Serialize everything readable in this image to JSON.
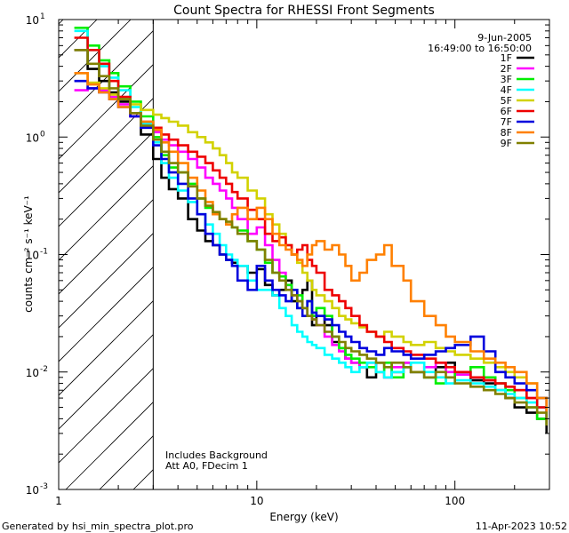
{
  "chart_data": {
    "type": "line",
    "title": "Count Spectra for RHESSI Front Segments",
    "xlabel": "Energy (keV)",
    "ylabel": "counts cm⁻² s⁻¹ keV⁻¹",
    "xscale": "log",
    "yscale": "log",
    "xlim": [
      1,
      300
    ],
    "ylim": [
      0.001,
      10
    ],
    "x_ticks": [
      {
        "v": 1,
        "label": "1"
      },
      {
        "v": 10,
        "label": "10"
      },
      {
        "v": 100,
        "label": "100"
      }
    ],
    "y_ticks": [
      {
        "v": 10,
        "base": "10",
        "exp": "1"
      },
      {
        "v": 1,
        "base": "10",
        "exp": "0"
      },
      {
        "v": 0.1,
        "base": "10",
        "exp": "-1"
      },
      {
        "v": 0.01,
        "base": "10",
        "exp": "-2"
      },
      {
        "v": 0.001,
        "base": "10",
        "exp": "-3"
      }
    ],
    "date": "9-Jun-2005",
    "time_range": "16:49:00 to 16:50:00",
    "hatch_limit_keV": 3,
    "annotations": [
      "Includes Background",
      "Att A0, FDecim 1"
    ],
    "footer_left": "Generated by hsi_min_spectra_plot.pro",
    "footer_right": "11-Apr-2023 10:52",
    "series": [
      {
        "name": "1F",
        "color": "#000000",
        "x": [
          1.2,
          1.4,
          1.6,
          1.8,
          2.0,
          2.3,
          2.6,
          3.0,
          3.3,
          3.6,
          4.0,
          4.5,
          5.0,
          5.5,
          6.0,
          6.5,
          7.0,
          7.5,
          8.0,
          9.0,
          10.0,
          11.0,
          12.0,
          13.0,
          14.0,
          15.0,
          16.0,
          17.0,
          18.0,
          19.0,
          20.0,
          22.0,
          24.0,
          26.0,
          28.0,
          30.0,
          33.0,
          36.0,
          40.0,
          44.0,
          48.0,
          55.0,
          60.0,
          70.0,
          80.0,
          90.0,
          100.0,
          120.0,
          140.0,
          160.0,
          180.0,
          200.0,
          230.0,
          260.0,
          290.0
        ],
        "y": [
          5.5,
          3.8,
          3.0,
          2.4,
          2.0,
          1.5,
          1.05,
          0.65,
          0.45,
          0.36,
          0.3,
          0.2,
          0.16,
          0.13,
          0.12,
          0.1,
          0.09,
          0.085,
          0.08,
          0.07,
          0.075,
          0.055,
          0.045,
          0.05,
          0.06,
          0.04,
          0.035,
          0.05,
          0.06,
          0.025,
          0.03,
          0.025,
          0.018,
          0.016,
          0.013,
          0.012,
          0.011,
          0.009,
          0.012,
          0.009,
          0.01,
          0.012,
          0.01,
          0.009,
          0.011,
          0.012,
          0.01,
          0.0085,
          0.008,
          0.007,
          0.006,
          0.005,
          0.0045,
          0.004,
          0.003
        ]
      },
      {
        "name": "2F",
        "color": "#ff00ff",
        "x": [
          1.2,
          1.4,
          1.6,
          1.8,
          2.0,
          2.3,
          2.6,
          3.0,
          3.3,
          3.6,
          4.0,
          4.5,
          5.0,
          5.5,
          6.0,
          6.5,
          7.0,
          7.5,
          8.0,
          9.0,
          10.0,
          11.0,
          12.0,
          13.0,
          14.0,
          15.0,
          16.0,
          17.0,
          18.0,
          19.0,
          20.0,
          22.0,
          24.0,
          26.0,
          28.0,
          30.0,
          33.0,
          36.0,
          40.0,
          44.0,
          48.0,
          55.0,
          60.0,
          70.0,
          80.0,
          90.0,
          100.0,
          120.0,
          140.0,
          160.0,
          180.0,
          200.0,
          230.0,
          260.0,
          290.0
        ],
        "y": [
          2.5,
          2.6,
          2.5,
          2.2,
          1.9,
          1.5,
          1.3,
          1.1,
          0.95,
          0.85,
          0.75,
          0.65,
          0.55,
          0.45,
          0.4,
          0.35,
          0.3,
          0.25,
          0.2,
          0.15,
          0.17,
          0.12,
          0.09,
          0.07,
          0.055,
          0.045,
          0.04,
          0.035,
          0.03,
          0.028,
          0.025,
          0.02,
          0.017,
          0.015,
          0.013,
          0.012,
          0.011,
          0.012,
          0.01,
          0.009,
          0.011,
          0.012,
          0.01,
          0.011,
          0.012,
          0.01,
          0.0095,
          0.009,
          0.0085,
          0.008,
          0.0075,
          0.007,
          0.006,
          0.005,
          0.004
        ]
      },
      {
        "name": "3F",
        "color": "#00ee00",
        "x": [
          1.2,
          1.4,
          1.6,
          1.8,
          2.0,
          2.3,
          2.6,
          3.0,
          3.3,
          3.6,
          4.0,
          4.5,
          5.0,
          5.5,
          6.0,
          6.5,
          7.0,
          7.5,
          8.0,
          9.0,
          10.0,
          11.0,
          12.0,
          13.0,
          14.0,
          15.0,
          16.0,
          17.0,
          18.0,
          19.0,
          20.0,
          22.0,
          24.0,
          26.0,
          28.0,
          30.0,
          33.0,
          36.0,
          40.0,
          44.0,
          48.0,
          55.0,
          60.0,
          70.0,
          80.0,
          90.0,
          100.0,
          120.0,
          140.0,
          160.0,
          180.0,
          200.0,
          230.0,
          260.0,
          290.0
        ],
        "y": [
          8.5,
          6.0,
          4.5,
          3.5,
          2.7,
          2.0,
          1.5,
          1.0,
          0.7,
          0.55,
          0.5,
          0.4,
          0.3,
          0.25,
          0.22,
          0.2,
          0.18,
          0.17,
          0.16,
          0.13,
          0.11,
          0.085,
          0.07,
          0.065,
          0.055,
          0.05,
          0.045,
          0.035,
          0.04,
          0.03,
          0.035,
          0.03,
          0.02,
          0.016,
          0.014,
          0.013,
          0.012,
          0.011,
          0.01,
          0.012,
          0.009,
          0.011,
          0.01,
          0.009,
          0.008,
          0.009,
          0.01,
          0.011,
          0.009,
          0.008,
          0.007,
          0.006,
          0.005,
          0.004,
          0.0035
        ]
      },
      {
        "name": "4F",
        "color": "#00ffff",
        "x": [
          1.2,
          1.4,
          1.6,
          1.8,
          2.0,
          2.3,
          2.6,
          3.0,
          3.3,
          3.6,
          4.0,
          4.5,
          5.0,
          5.5,
          6.0,
          6.5,
          7.0,
          7.5,
          8.0,
          9.0,
          10.0,
          11.0,
          12.0,
          13.0,
          14.0,
          15.0,
          16.0,
          17.0,
          18.0,
          19.0,
          20.0,
          22.0,
          24.0,
          26.0,
          28.0,
          30.0,
          33.0,
          36.0,
          40.0,
          44.0,
          48.0,
          55.0,
          60.0,
          70.0,
          80.0,
          90.0,
          100.0,
          120.0,
          140.0,
          160.0,
          180.0,
          200.0,
          230.0,
          260.0,
          290.0
        ],
        "y": [
          8.0,
          5.5,
          4.0,
          3.2,
          2.5,
          1.8,
          1.3,
          0.9,
          0.6,
          0.45,
          0.35,
          0.28,
          0.22,
          0.18,
          0.15,
          0.12,
          0.1,
          0.09,
          0.08,
          0.06,
          0.05,
          0.05,
          0.045,
          0.035,
          0.03,
          0.025,
          0.022,
          0.02,
          0.018,
          0.017,
          0.016,
          0.014,
          0.013,
          0.012,
          0.011,
          0.01,
          0.011,
          0.012,
          0.01,
          0.009,
          0.01,
          0.011,
          0.012,
          0.01,
          0.009,
          0.008,
          0.0085,
          0.008,
          0.0075,
          0.007,
          0.0065,
          0.006,
          0.0055,
          0.005,
          0.004
        ]
      },
      {
        "name": "5F",
        "color": "#d2d200",
        "x": [
          1.2,
          1.4,
          1.6,
          1.8,
          2.0,
          2.3,
          2.6,
          3.0,
          3.3,
          3.6,
          4.0,
          4.5,
          5.0,
          5.5,
          6.0,
          6.5,
          7.0,
          7.5,
          8.0,
          9.0,
          10.0,
          11.0,
          12.0,
          13.0,
          14.0,
          15.0,
          16.0,
          17.0,
          18.0,
          19.0,
          20.0,
          22.0,
          24.0,
          26.0,
          28.0,
          30.0,
          33.0,
          36.0,
          40.0,
          44.0,
          48.0,
          55.0,
          60.0,
          70.0,
          80.0,
          90.0,
          100.0,
          120.0,
          140.0,
          160.0,
          180.0,
          200.0,
          230.0,
          260.0,
          290.0
        ],
        "y": [
          3.5,
          2.9,
          2.6,
          2.3,
          2.1,
          1.9,
          1.7,
          1.55,
          1.45,
          1.35,
          1.25,
          1.1,
          1.0,
          0.9,
          0.8,
          0.7,
          0.6,
          0.5,
          0.45,
          0.35,
          0.3,
          0.22,
          0.18,
          0.15,
          0.12,
          0.1,
          0.085,
          0.07,
          0.06,
          0.05,
          0.045,
          0.04,
          0.035,
          0.03,
          0.028,
          0.026,
          0.024,
          0.022,
          0.02,
          0.022,
          0.02,
          0.018,
          0.017,
          0.018,
          0.016,
          0.015,
          0.014,
          0.013,
          0.012,
          0.011,
          0.01,
          0.009,
          0.008,
          0.006,
          0.005
        ]
      },
      {
        "name": "6F",
        "color": "#ee0000",
        "x": [
          1.2,
          1.4,
          1.6,
          1.8,
          2.0,
          2.3,
          2.6,
          3.0,
          3.3,
          3.6,
          4.0,
          4.5,
          5.0,
          5.5,
          6.0,
          6.5,
          7.0,
          7.5,
          8.0,
          9.0,
          10.0,
          11.0,
          12.0,
          13.0,
          14.0,
          15.0,
          16.0,
          17.0,
          18.0,
          19.0,
          20.0,
          22.0,
          24.0,
          26.0,
          28.0,
          30.0,
          33.0,
          36.0,
          40.0,
          44.0,
          48.0,
          55.0,
          60.0,
          70.0,
          80.0,
          90.0,
          100.0,
          120.0,
          140.0,
          160.0,
          180.0,
          200.0,
          230.0,
          260.0,
          290.0
        ],
        "y": [
          7.0,
          5.5,
          4.2,
          3.0,
          2.2,
          1.6,
          1.35,
          1.2,
          1.05,
          0.95,
          0.85,
          0.75,
          0.68,
          0.6,
          0.52,
          0.45,
          0.4,
          0.34,
          0.3,
          0.24,
          0.2,
          0.15,
          0.13,
          0.14,
          0.12,
          0.1,
          0.11,
          0.12,
          0.09,
          0.08,
          0.07,
          0.05,
          0.045,
          0.04,
          0.035,
          0.03,
          0.025,
          0.022,
          0.02,
          0.018,
          0.016,
          0.015,
          0.014,
          0.013,
          0.012,
          0.011,
          0.01,
          0.009,
          0.0085,
          0.008,
          0.0075,
          0.007,
          0.006,
          0.005,
          0.004
        ]
      },
      {
        "name": "7F",
        "color": "#0000dd",
        "x": [
          1.2,
          1.4,
          1.6,
          1.8,
          2.0,
          2.3,
          2.6,
          3.0,
          3.3,
          3.6,
          4.0,
          4.5,
          5.0,
          5.5,
          6.0,
          6.5,
          7.0,
          7.5,
          8.0,
          9.0,
          10.0,
          11.0,
          12.0,
          13.0,
          14.0,
          15.0,
          16.0,
          17.0,
          18.0,
          19.0,
          20.0,
          22.0,
          24.0,
          26.0,
          28.0,
          30.0,
          33.0,
          36.0,
          40.0,
          44.0,
          48.0,
          55.0,
          60.0,
          70.0,
          80.0,
          90.0,
          100.0,
          120.0,
          140.0,
          160.0,
          180.0,
          200.0,
          230.0,
          260.0,
          290.0
        ],
        "y": [
          3.0,
          2.6,
          2.4,
          2.1,
          1.8,
          1.5,
          1.2,
          0.85,
          0.65,
          0.5,
          0.4,
          0.3,
          0.22,
          0.15,
          0.12,
          0.1,
          0.09,
          0.08,
          0.06,
          0.05,
          0.08,
          0.06,
          0.05,
          0.045,
          0.04,
          0.05,
          0.035,
          0.03,
          0.04,
          0.032,
          0.03,
          0.028,
          0.025,
          0.022,
          0.02,
          0.018,
          0.016,
          0.015,
          0.014,
          0.016,
          0.015,
          0.014,
          0.013,
          0.014,
          0.015,
          0.016,
          0.017,
          0.02,
          0.015,
          0.01,
          0.009,
          0.008,
          0.007,
          0.006,
          0.004
        ]
      },
      {
        "name": "8F",
        "color": "#ff8000",
        "x": [
          1.2,
          1.4,
          1.6,
          1.8,
          2.0,
          2.3,
          2.6,
          3.0,
          3.3,
          3.6,
          4.0,
          4.5,
          5.0,
          5.5,
          6.0,
          6.5,
          7.0,
          7.5,
          8.0,
          9.0,
          10.0,
          11.0,
          12.0,
          13.0,
          14.0,
          15.0,
          16.0,
          17.0,
          18.0,
          19.0,
          20.0,
          22.0,
          24.0,
          26.0,
          28.0,
          30.0,
          33.0,
          36.0,
          40.0,
          44.0,
          48.0,
          55.0,
          60.0,
          70.0,
          80.0,
          90.0,
          100.0,
          120.0,
          140.0,
          160.0,
          180.0,
          200.0,
          230.0,
          260.0,
          290.0
        ],
        "y": [
          3.5,
          2.8,
          2.4,
          2.1,
          1.8,
          1.6,
          1.35,
          1.15,
          0.9,
          0.75,
          0.6,
          0.45,
          0.35,
          0.28,
          0.22,
          0.2,
          0.18,
          0.22,
          0.25,
          0.2,
          0.25,
          0.2,
          0.15,
          0.12,
          0.11,
          0.1,
          0.09,
          0.08,
          0.1,
          0.12,
          0.13,
          0.11,
          0.12,
          0.1,
          0.08,
          0.06,
          0.07,
          0.09,
          0.1,
          0.12,
          0.08,
          0.06,
          0.04,
          0.03,
          0.025,
          0.02,
          0.018,
          0.015,
          0.013,
          0.012,
          0.011,
          0.01,
          0.008,
          0.006,
          0.0045
        ]
      },
      {
        "name": "9F",
        "color": "#808000",
        "x": [
          1.2,
          1.4,
          1.6,
          1.8,
          2.0,
          2.3,
          2.6,
          3.0,
          3.3,
          3.6,
          4.0,
          4.5,
          5.0,
          5.5,
          6.0,
          6.5,
          7.0,
          7.5,
          8.0,
          9.0,
          10.0,
          11.0,
          12.0,
          13.0,
          14.0,
          15.0,
          16.0,
          17.0,
          18.0,
          19.0,
          20.0,
          22.0,
          24.0,
          26.0,
          28.0,
          30.0,
          33.0,
          36.0,
          40.0,
          44.0,
          48.0,
          55.0,
          60.0,
          70.0,
          80.0,
          90.0,
          100.0,
          120.0,
          140.0,
          160.0,
          180.0,
          200.0,
          230.0,
          260.0,
          290.0
        ],
        "y": [
          5.5,
          4.2,
          3.3,
          2.6,
          2.1,
          1.6,
          1.25,
          0.95,
          0.75,
          0.6,
          0.5,
          0.38,
          0.3,
          0.26,
          0.23,
          0.2,
          0.19,
          0.17,
          0.15,
          0.13,
          0.11,
          0.09,
          0.07,
          0.06,
          0.05,
          0.045,
          0.04,
          0.035,
          0.03,
          0.028,
          0.025,
          0.022,
          0.02,
          0.018,
          0.016,
          0.015,
          0.014,
          0.013,
          0.012,
          0.011,
          0.012,
          0.011,
          0.01,
          0.009,
          0.01,
          0.009,
          0.008,
          0.0075,
          0.007,
          0.0065,
          0.006,
          0.0055,
          0.005,
          0.0045,
          0.0035
        ]
      }
    ]
  }
}
